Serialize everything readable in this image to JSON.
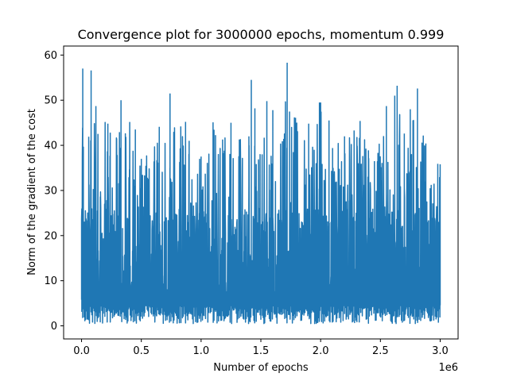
{
  "chart_data": {
    "type": "line",
    "title": "Convergence plot for 3000000 epochs, momentum 0.999",
    "xlabel": "Number of epochs",
    "ylabel": "Norm of the gradient of the cost",
    "x_offset_label": "1e6",
    "xlim": [
      -150000,
      3150000
    ],
    "ylim": [
      -2.9,
      62
    ],
    "x_ticks": [
      0,
      500000,
      1000000,
      1500000,
      2000000,
      2500000,
      3000000
    ],
    "x_tick_labels": [
      "0.0",
      "0.5",
      "1.0",
      "1.5",
      "2.0",
      "2.5",
      "3.0"
    ],
    "y_ticks": [
      0,
      10,
      20,
      30,
      40,
      50,
      60
    ],
    "y_tick_labels": [
      "0",
      "10",
      "20",
      "30",
      "40",
      "50",
      "60"
    ],
    "grid": false,
    "series": [
      {
        "color": "#1f77b4",
        "x_range": [
          0,
          3000000
        ],
        "x": [
          0,
          10000,
          15000,
          20000,
          60000,
          80000,
          120000,
          220000,
          240000,
          330000,
          450000,
          500000,
          650000,
          740000,
          830000,
          870000,
          900000,
          1000000,
          1100000,
          1180000,
          1250000,
          1320000,
          1400000,
          1420000,
          1450000,
          1480000,
          1550000,
          1600000,
          1680000,
          1720000,
          1740000,
          1790000,
          1900000,
          1990000,
          2000000,
          2070000,
          2100000,
          2200000,
          2280000,
          2330000,
          2400000,
          2450000,
          2550000,
          2620000,
          2640000,
          2700000,
          2750000,
          2810000,
          2880000,
          2980000,
          3000000
        ],
        "peaks": [
          23.7,
          57.0,
          39.7,
          21.6,
          41.9,
          56.6,
          48.7,
          44.8,
          42.8,
          50.0,
          43.5,
          37.0,
          44.1,
          51.5,
          44.2,
          45.2,
          41.0,
          37.5,
          45.1,
          41.3,
          45.0,
          41.3,
          42.0,
          54.5,
          48.2,
          36.9,
          49.8,
          47.8,
          40.9,
          58.3,
          47.5,
          46.1,
          44.8,
          49.5,
          49.5,
          45.5,
          39.4,
          42.0,
          43.3,
          45.4,
          38.9,
          36.5,
          48.7,
          51.0,
          53.2,
          42.6,
          48.0,
          52.6,
          40.4,
          35.9,
          35.8
        ]
      }
    ]
  }
}
